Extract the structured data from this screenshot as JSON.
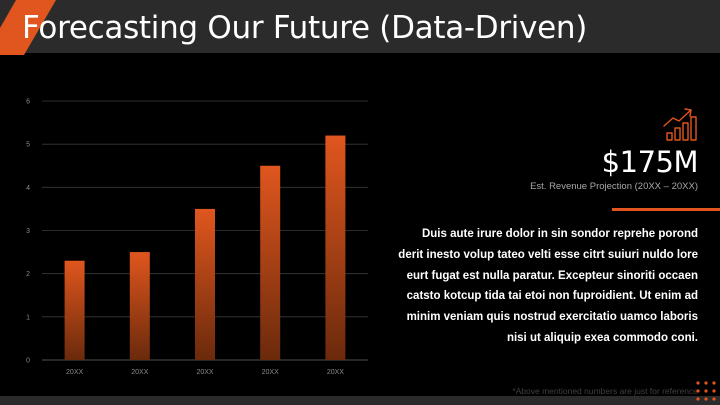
{
  "slide": {
    "title": "Forecasting Our Future (Data-Driven)",
    "kpi_value": "$175M",
    "kpi_caption": "Est. Revenue Projection (20XX – 20XX)",
    "body": "Duis aute irure dolor in sin sondor reprehe porond derit inesto volup tateo velti esse citrt suiuri nuldo lore eurt fugat est nulla paratur. Excepteur sinoriti occaen catsto kotcup tida tai etoi non fuproidient. Ut enim ad minim veniam quis nostrud exercitatio uamco laboris nisi ut aliquip exea commodo coni.",
    "footnote": "*Above mentioned numbers are just for reference"
  },
  "icons": {
    "kpi": "growth-chart-icon",
    "decoration": "dot-grid-icon"
  },
  "colors": {
    "accent": "#e0561e",
    "bar_top": "#e0561e",
    "bar_bottom": "#6b2a0c",
    "title_bar": "#2b2b2b",
    "background": "#000000"
  },
  "chart_data": {
    "type": "bar",
    "categories": [
      "20XX",
      "20XX",
      "20XX",
      "20XX",
      "20XX"
    ],
    "values": [
      2.3,
      2.5,
      3.5,
      4.5,
      5.2
    ],
    "ylim": [
      0,
      6
    ],
    "yticks": [
      "0",
      "1",
      "2",
      "3",
      "4",
      "5",
      "6"
    ],
    "grid": true
  }
}
